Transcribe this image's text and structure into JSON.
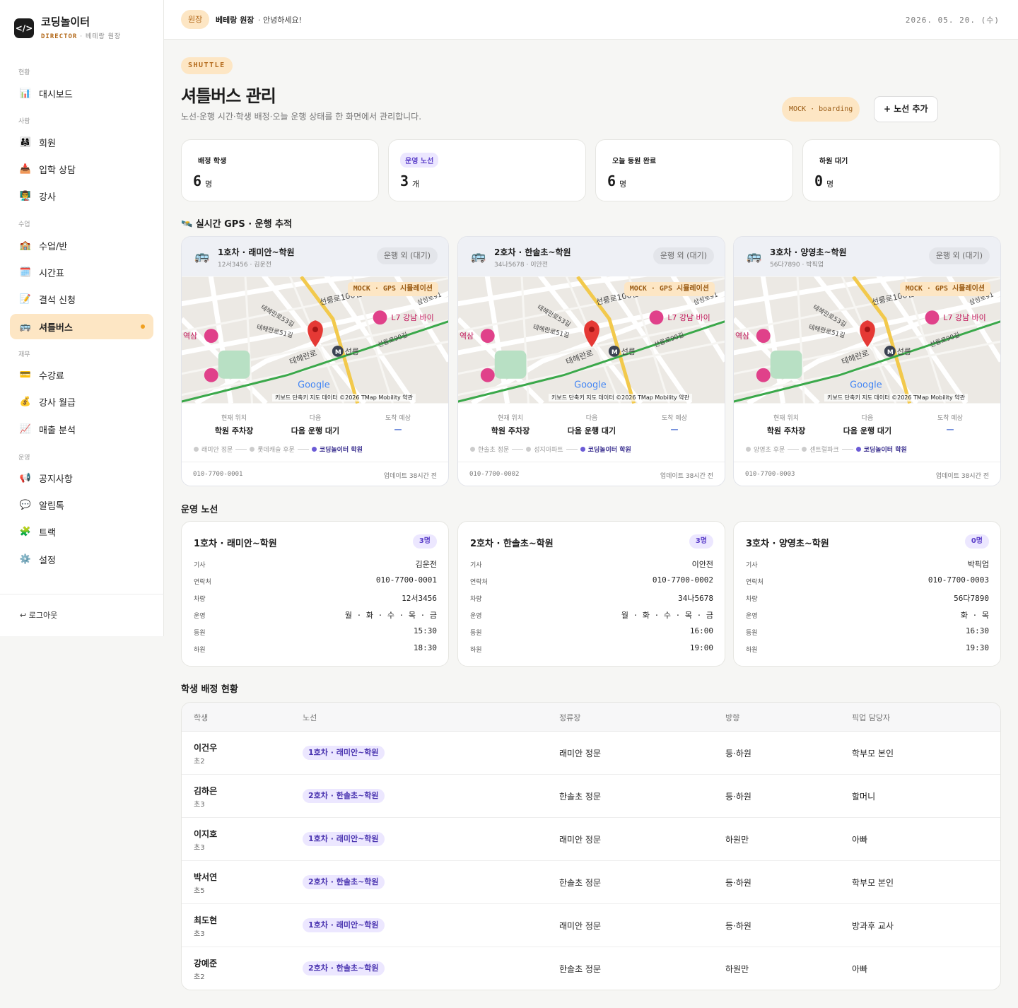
{
  "brand": {
    "logo": "</>",
    "name": "코딩놀이터",
    "role": "DIRECTOR",
    "user": "· 베테랑 원장"
  },
  "nav": {
    "sections": [
      "현황",
      "사람",
      "수업",
      "재무",
      "운영"
    ],
    "items": [
      {
        "icon": "📊",
        "label": "대시보드"
      },
      {
        "icon": "👨‍👩‍👧",
        "label": "회원"
      },
      {
        "icon": "📥",
        "label": "입학 상담"
      },
      {
        "icon": "👨‍🏫",
        "label": "강사"
      },
      {
        "icon": "🏫",
        "label": "수업/반"
      },
      {
        "icon": "🗓️",
        "label": "시간표"
      },
      {
        "icon": "📝",
        "label": "결석 신청"
      },
      {
        "icon": "🚌",
        "label": "셔틀버스"
      },
      {
        "icon": "💳",
        "label": "수강료"
      },
      {
        "icon": "💰",
        "label": "강사 월급"
      },
      {
        "icon": "📈",
        "label": "매출 분석"
      },
      {
        "icon": "📢",
        "label": "공지사항"
      },
      {
        "icon": "💬",
        "label": "알림톡"
      },
      {
        "icon": "🧩",
        "label": "트랙"
      },
      {
        "icon": "⚙️",
        "label": "설정"
      }
    ],
    "active": "셔틀버스",
    "logout": "↩ 로그아웃"
  },
  "topbar": {
    "role": "원장",
    "name": "베테랑 원장",
    "greeting": "· 안녕하세요!",
    "date": "2026. 05. 20. (수)"
  },
  "header": {
    "tag": "SHUTTLE",
    "title": "셔틀버스 관리",
    "subtitle": "노선·운행 시간·학생 배정·오늘 운행 상태를 한 화면에서 관리합니다.",
    "mock": "MOCK · boarding",
    "add_button": "+ 노선 추가"
  },
  "stats": [
    {
      "label": "배정 학생",
      "value": "6",
      "unit": "명"
    },
    {
      "label": "운영 노선",
      "value": "3",
      "unit": "개"
    },
    {
      "label": "오늘 등원 완료",
      "value": "6",
      "unit": "명"
    },
    {
      "label": "하원 대기",
      "value": "0",
      "unit": "명"
    }
  ],
  "gps": {
    "title": "🛰️ 실시간 GPS · 운행 추적",
    "mock_label": "MOCK · GPS 시뮬레이션",
    "map_attribution": "키보드 단축키   지도 데이터 ©2026 TMap Mobility   약관",
    "map_labels": [
      "선릉로100길",
      "테헤란로",
      "선릉",
      "L7 강남 바이",
      "역삼",
      "테헤란로53길",
      "테헤란로51길",
      "선릉로90길",
      "삼성로91",
      "Google"
    ],
    "col_labels": [
      "현재 위치",
      "다음",
      "도착 예상"
    ],
    "cards": [
      {
        "name": "1호차 · 래미안~학원",
        "plate": "12서3456 · 김운전",
        "state": "운행 외 (대기)",
        "location": "학원 주차장",
        "next": "다음 운행 대기",
        "eta": "—",
        "stops": [
          "래미안 정문",
          "롯데캐슬 후문",
          "코딩놀이터 학원"
        ],
        "phone": "010-7700-0001",
        "updated": "업데이트 38시간 전"
      },
      {
        "name": "2호차 · 한솔초~학원",
        "plate": "34나5678 · 이안전",
        "state": "운행 외 (대기)",
        "location": "학원 주차장",
        "next": "다음 운행 대기",
        "eta": "—",
        "stops": [
          "한솔초 정문",
          "성지아파트",
          "코딩놀이터 학원"
        ],
        "phone": "010-7700-0002",
        "updated": "업데이트 38시간 전"
      },
      {
        "name": "3호차 · 양영초~학원",
        "plate": "56다7890 · 박픽업",
        "state": "운행 외 (대기)",
        "location": "학원 주차장",
        "next": "다음 운행 대기",
        "eta": "—",
        "stops": [
          "양영초 후문",
          "센트럴파크",
          "코딩놀이터 학원"
        ],
        "phone": "010-7700-0003",
        "updated": "업데이트 38시간 전"
      }
    ]
  },
  "routes": {
    "title": "운영 노선",
    "keys": [
      "기사",
      "연락처",
      "차량",
      "운영",
      "등원",
      "하원"
    ],
    "cards": [
      {
        "name": "1호차 · 래미안~학원",
        "count": "3명",
        "values": [
          "김운전",
          "010-7700-0001",
          "12서3456",
          "월 · 화 · 수 · 목 · 금",
          "15:30",
          "18:30"
        ]
      },
      {
        "name": "2호차 · 한솔초~학원",
        "count": "3명",
        "values": [
          "이안전",
          "010-7700-0002",
          "34나5678",
          "월 · 화 · 수 · 목 · 금",
          "16:00",
          "19:00"
        ]
      },
      {
        "name": "3호차 · 양영초~학원",
        "count": "0명",
        "values": [
          "박픽업",
          "010-7700-0003",
          "56다7890",
          "화 · 목",
          "16:30",
          "19:30"
        ]
      }
    ]
  },
  "assignments": {
    "title": "학생 배정 현황",
    "columns": [
      "학생",
      "노선",
      "정류장",
      "방향",
      "픽업 담당자"
    ],
    "rows": [
      {
        "name": "이건우",
        "grade": "초2",
        "route": "1호차 · 래미안~학원",
        "stop": "래미안 정문",
        "direction": "등·하원",
        "pickup": "학부모 본인"
      },
      {
        "name": "김하은",
        "grade": "초3",
        "route": "2호차 · 한솔초~학원",
        "stop": "한솔초 정문",
        "direction": "등·하원",
        "pickup": "할머니"
      },
      {
        "name": "이지호",
        "grade": "초3",
        "route": "1호차 · 래미안~학원",
        "stop": "래미안 정문",
        "direction": "하원만",
        "pickup": "아빠"
      },
      {
        "name": "박서연",
        "grade": "초5",
        "route": "2호차 · 한솔초~학원",
        "stop": "한솔초 정문",
        "direction": "등·하원",
        "pickup": "학부모 본인"
      },
      {
        "name": "최도현",
        "grade": "초3",
        "route": "1호차 · 래미안~학원",
        "stop": "래미안 정문",
        "direction": "등·하원",
        "pickup": "방과후 교사"
      },
      {
        "name": "강예준",
        "grade": "초2",
        "route": "2호차 · 한솔초~학원",
        "stop": "한솔초 정문",
        "direction": "하원만",
        "pickup": "아빠"
      }
    ]
  },
  "colors": {
    "accent": "#fde6c4",
    "accent_text": "#b3691a",
    "purple": "#5b3fc9",
    "map_pin": "#e53935"
  }
}
